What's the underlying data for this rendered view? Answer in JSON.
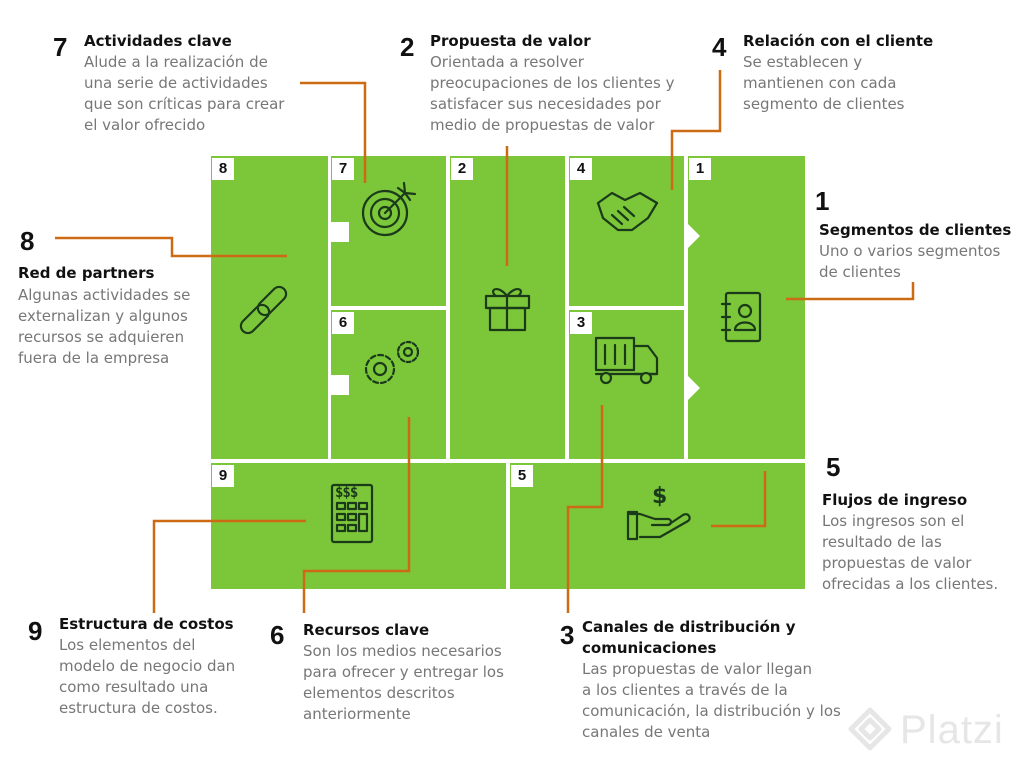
{
  "colors": {
    "block_green": "#7cc63a",
    "leader_orange": "#cc6b14",
    "icon_dark": "#1a3a1a"
  },
  "callouts": [
    {
      "id": "c7",
      "number": "7",
      "title": "Actividades clave",
      "desc": "Alude a la realización de\nuna serie de actividades\nque son críticas para crear\nel valor ofrecido"
    },
    {
      "id": "c2",
      "number": "2",
      "title": "Propuesta de valor",
      "desc": "Orientada a resolver\npreocupaciones de los clientes y\nsatisfacer sus necesidades por\nmedio de propuestas de valor"
    },
    {
      "id": "c4",
      "number": "4",
      "title": "Relación con el cliente",
      "desc": "Se establecen y\nmantienen con cada\nsegmento de clientes"
    },
    {
      "id": "c1",
      "number": "1",
      "title": "Segmentos de clientes",
      "desc": "Uno o varios segmentos\nde clientes"
    },
    {
      "id": "c8",
      "number": "8",
      "title": "Red de partners",
      "desc": "Algunas actividades se\nexternalizan y algunos\nrecursos se adquieren\nfuera de la empresa"
    },
    {
      "id": "c5",
      "number": "5",
      "title": "Flujos de ingreso",
      "desc": "Los ingresos son el\nresultado de las\npropuestas de valor\nofrecidas a los clientes."
    },
    {
      "id": "c9",
      "number": "9",
      "title": "Estructura de costos",
      "desc": "Los elementos del\nmodelo de negocio dan\ncomo resultado una\nestructura de costos."
    },
    {
      "id": "c6",
      "number": "6",
      "title": "Recursos clave",
      "desc": "Son los medios necesarios\npara ofrecer y entregar los\nelementos descritos\nanteriormente"
    },
    {
      "id": "c3",
      "number": "3",
      "title": "Canales de distribución y\ncomunicaciones",
      "desc": "Las propuestas de valor llegan\na los clientes a través de la\ncomunicación, la distribución y los\ncanales de venta"
    }
  ],
  "blocks": [
    {
      "tag": "8",
      "icon": "chain-link-icon"
    },
    {
      "tag": "7",
      "icon": "target-icon"
    },
    {
      "tag": "6",
      "icon": "gears-icon"
    },
    {
      "tag": "2",
      "icon": "gift-icon"
    },
    {
      "tag": "4",
      "icon": "handshake-icon"
    },
    {
      "tag": "3",
      "icon": "truck-icon"
    },
    {
      "tag": "1",
      "icon": "contact-book-icon"
    },
    {
      "tag": "9",
      "icon": "calculator-icon"
    },
    {
      "tag": "5",
      "icon": "money-hand-icon"
    }
  ],
  "watermark": "Platzi"
}
